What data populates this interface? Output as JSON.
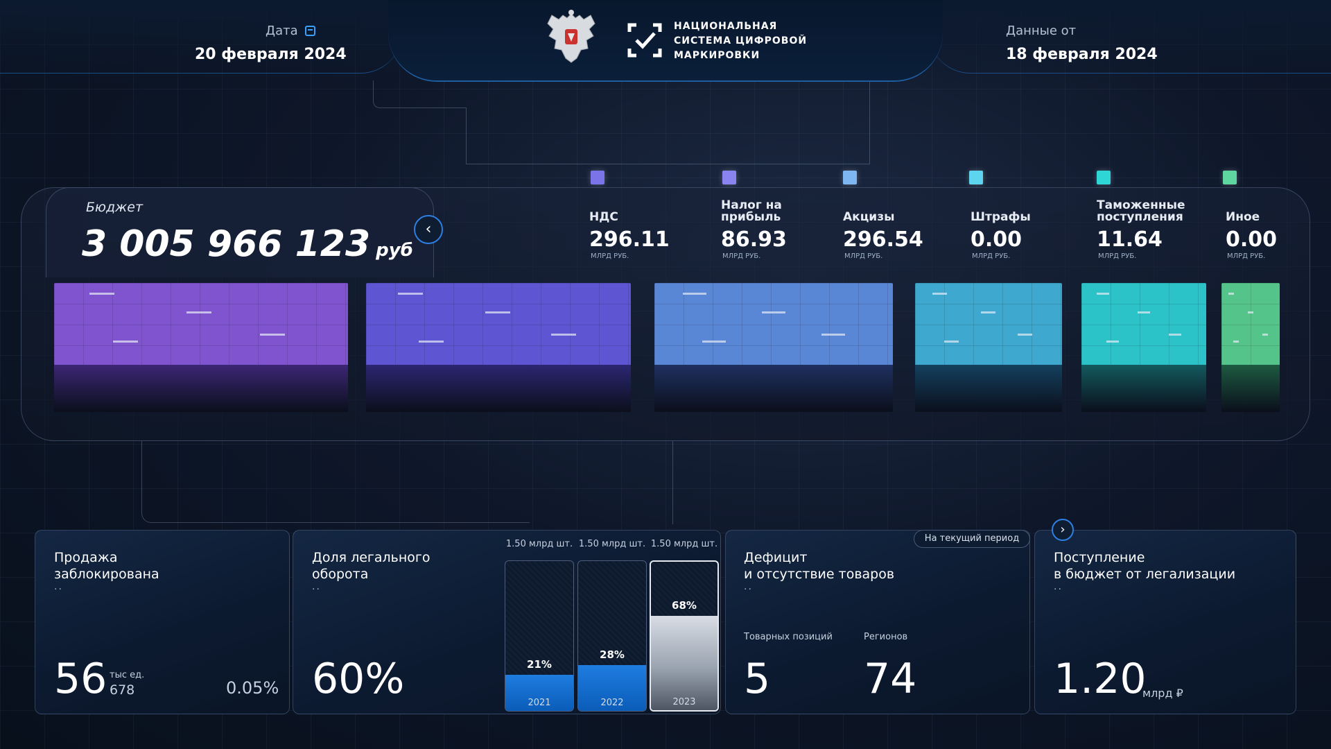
{
  "header": {
    "date_label": "Дата",
    "date_value": "20 февраля 2024",
    "data_from_label": "Данные от",
    "data_from_value": "18 февраля 2024",
    "logo_lines": [
      "НАЦИОНАЛЬНАЯ",
      "СИСТЕМА ЦИФРОВОЙ",
      "МАРКИРОВКИ"
    ],
    "emblem_icon": "coat-of-arms-icon",
    "logo_icon": "check-frame-icon",
    "calendar_icon": "calendar-icon"
  },
  "budget": {
    "label": "Бюджет",
    "value": "3 005 966 123",
    "unit": "руб",
    "collapse_icon": "chevron-left-icon",
    "categories": [
      {
        "name": "НДС",
        "value": "296.11",
        "unit": "МЛРД РУБ.",
        "color": "#7b74e8"
      },
      {
        "name": "Налог на\nприбыль",
        "value": "86.93",
        "unit": "МЛРД РУБ.",
        "color": "#8a84f0"
      },
      {
        "name": "Акцизы",
        "value": "296.54",
        "unit": "МЛРД РУБ.",
        "color": "#7eb6f2"
      },
      {
        "name": "Штрафы",
        "value": "0.00",
        "unit": "МЛРД РУБ.",
        "color": "#5ed4ee"
      },
      {
        "name": "Таможенные\nпоступления",
        "value": "11.64",
        "unit": "МЛРД РУБ.",
        "color": "#2ed6d6"
      },
      {
        "name": "Иное",
        "value": "0.00",
        "unit": "МЛРД РУБ.",
        "color": "#5fd6a0"
      }
    ],
    "cubes": [
      {
        "top": "#8154cf",
        "bottom": "#3c2675"
      },
      {
        "top": "#5e55d2",
        "bottom": "#2b2672"
      },
      {
        "top": "#5a86d6",
        "bottom": "#1f3060"
      },
      {
        "top": "#3fa8cf",
        "bottom": "#14405e"
      },
      {
        "top": "#2cc3c8",
        "bottom": "#135a5e"
      },
      {
        "top": "#55c48a",
        "bottom": "#1d5a40"
      }
    ]
  },
  "cards": {
    "blocked": {
      "title": "Продажа\nзаблокирована",
      "dots": "..",
      "value": "56",
      "unit": "тыс ед.",
      "sub_value": "678",
      "percent": "0.05%"
    },
    "legal": {
      "title": "Доля легального\nоборота",
      "dots": "..",
      "value": "60%",
      "years": [
        {
          "top_label": "1.50 млрд шт.",
          "percent": "21%",
          "share": 0.21,
          "year": "2021"
        },
        {
          "top_label": "1.50 млрд шт.",
          "percent": "28%",
          "share": 0.28,
          "year": "2022"
        },
        {
          "top_label": "1.50 млрд шт.",
          "percent": "68%",
          "share": 0.68,
          "year": "2023"
        }
      ]
    },
    "deficit": {
      "title": "Дефицит\nи отсутствие товаров",
      "dots": "..",
      "period": "На текущий период",
      "positions_label": "Товарных позиций",
      "positions_value": "5",
      "regions_label": "Регионов",
      "regions_value": "74"
    },
    "legalization": {
      "title": "Поступление\nв бюджет от легализации",
      "dots": "..",
      "value": "1.20",
      "unit": "млрд ₽",
      "next_icon": "chevron-right-icon"
    }
  }
}
